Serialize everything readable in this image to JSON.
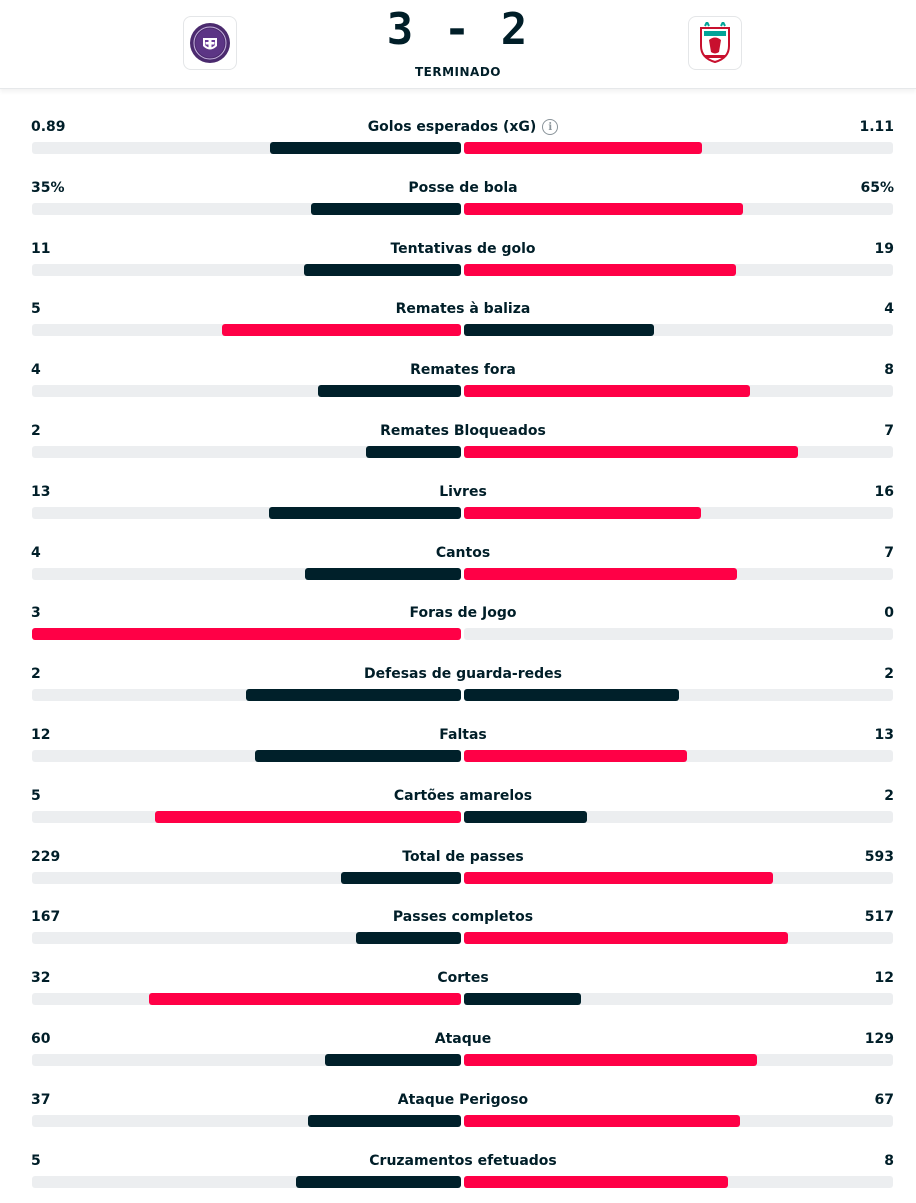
{
  "match": {
    "score": "3 - 2",
    "status": "TERMINADO",
    "home_logo": "toulouse-fc-crest",
    "away_logo": "liverpool-fc-crest"
  },
  "colors": {
    "winner_bar": "#ff0046",
    "loser_bar": "#00202a",
    "track": "#eceef0",
    "text": "#001e28"
  },
  "stats": [
    {
      "label": "Golos esperados (xG)",
      "home": "0.89",
      "away": "1.11",
      "home_fill": 0.445,
      "away_fill": 0.555,
      "info": true
    },
    {
      "label": "Posse de bola",
      "home": "35%",
      "away": "65%",
      "home_fill": 0.35,
      "away_fill": 0.65
    },
    {
      "label": "Tentativas de golo",
      "home": "11",
      "away": "19",
      "home_fill": 0.367,
      "away_fill": 0.633
    },
    {
      "label": "Remates à baliza",
      "home": "5",
      "away": "4",
      "home_fill": 0.556,
      "away_fill": 0.444
    },
    {
      "label": "Remates fora",
      "home": "4",
      "away": "8",
      "home_fill": 0.333,
      "away_fill": 0.667
    },
    {
      "label": "Remates Bloqueados",
      "home": "2",
      "away": "7",
      "home_fill": 0.222,
      "away_fill": 0.778
    },
    {
      "label": "Livres",
      "home": "13",
      "away": "16",
      "home_fill": 0.448,
      "away_fill": 0.552
    },
    {
      "label": "Cantos",
      "home": "4",
      "away": "7",
      "home_fill": 0.364,
      "away_fill": 0.636
    },
    {
      "label": "Foras de Jogo",
      "home": "3",
      "away": "0",
      "home_fill": 1.0,
      "away_fill": 0.0
    },
    {
      "label": "Defesas de guarda-redes",
      "home": "2",
      "away": "2",
      "home_fill": 0.5,
      "away_fill": 0.5
    },
    {
      "label": "Faltas",
      "home": "12",
      "away": "13",
      "home_fill": 0.48,
      "away_fill": 0.52
    },
    {
      "label": "Cartões amarelos",
      "home": "5",
      "away": "2",
      "home_fill": 0.714,
      "away_fill": 0.286
    },
    {
      "label": "Total de passes",
      "home": "229",
      "away": "593",
      "home_fill": 0.279,
      "away_fill": 0.721
    },
    {
      "label": "Passes completos",
      "home": "167",
      "away": "517",
      "home_fill": 0.244,
      "away_fill": 0.756
    },
    {
      "label": "Cortes",
      "home": "32",
      "away": "12",
      "home_fill": 0.727,
      "away_fill": 0.273
    },
    {
      "label": "Ataque",
      "home": "60",
      "away": "129",
      "home_fill": 0.317,
      "away_fill": 0.683
    },
    {
      "label": "Ataque Perigoso",
      "home": "37",
      "away": "67",
      "home_fill": 0.356,
      "away_fill": 0.644
    },
    {
      "label": "Cruzamentos efetuados",
      "home": "5",
      "away": "8",
      "home_fill": 0.385,
      "away_fill": 0.615
    }
  ]
}
